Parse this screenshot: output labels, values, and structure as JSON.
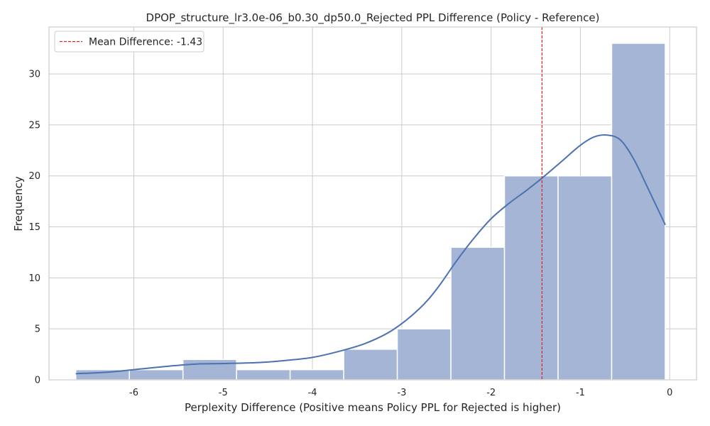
{
  "chart_data": {
    "type": "bar",
    "title": "DPOP_structure_lr3.0e-06_b0.30_dp50.0_Rejected PPL Difference (Policy - Reference)",
    "xlabel": "Perplexity Difference (Positive means Policy PPL for Rejected is higher)",
    "ylabel": "Frequency",
    "xlim": [
      -6.95,
      0.3
    ],
    "ylim": [
      0,
      34.6
    ],
    "xticks": [
      -6,
      -5,
      -4,
      -3,
      -2,
      -1,
      0
    ],
    "xtick_labels": [
      "-6",
      "-5",
      "-4",
      "-3",
      "-2",
      "-1",
      "0"
    ],
    "yticks": [
      0,
      5,
      10,
      15,
      20,
      25,
      30
    ],
    "ytick_labels": [
      "0",
      "5",
      "10",
      "15",
      "20",
      "25",
      "30"
    ],
    "bins": [
      {
        "x0": -6.65,
        "x1": -6.05,
        "count": 1
      },
      {
        "x0": -6.05,
        "x1": -5.45,
        "count": 1
      },
      {
        "x0": -5.45,
        "x1": -4.85,
        "count": 2
      },
      {
        "x0": -4.85,
        "x1": -4.25,
        "count": 1
      },
      {
        "x0": -4.25,
        "x1": -3.65,
        "count": 1
      },
      {
        "x0": -3.65,
        "x1": -3.05,
        "count": 3
      },
      {
        "x0": -3.05,
        "x1": -2.45,
        "count": 5
      },
      {
        "x0": -2.45,
        "x1": -1.85,
        "count": 13
      },
      {
        "x0": -1.85,
        "x1": -1.25,
        "count": 20
      },
      {
        "x0": -1.25,
        "x1": -0.65,
        "count": 20
      },
      {
        "x0": -0.65,
        "x1": -0.05,
        "count": 33
      }
    ],
    "kde": {
      "x": [
        -6.65,
        -6.3,
        -6.0,
        -5.6,
        -5.3,
        -5.0,
        -4.6,
        -4.3,
        -4.0,
        -3.7,
        -3.4,
        -3.1,
        -2.8,
        -2.6,
        -2.4,
        -2.2,
        -2.0,
        -1.8,
        -1.6,
        -1.4,
        -1.2,
        -1.0,
        -0.85,
        -0.7,
        -0.55,
        -0.4,
        -0.25,
        -0.05
      ],
      "y": [
        0.6,
        0.75,
        1.0,
        1.35,
        1.55,
        1.6,
        1.7,
        1.9,
        2.2,
        2.8,
        3.6,
        4.9,
        7.0,
        9.0,
        11.5,
        13.8,
        15.8,
        17.3,
        18.6,
        20.0,
        21.5,
        23.0,
        23.8,
        24.0,
        23.5,
        21.6,
        18.9,
        15.2
      ]
    },
    "mean_line": {
      "x": -1.43,
      "label": "Mean Difference: -1.43"
    },
    "legend_position": "top-left",
    "grid": true,
    "colors": {
      "bar_fill": "#a4b5d6",
      "bar_stroke": "#ffffff",
      "kde_line": "#4c72b0",
      "mean_line": "#d62728",
      "grid": "#cccccc",
      "frame": "#cccccc"
    }
  }
}
